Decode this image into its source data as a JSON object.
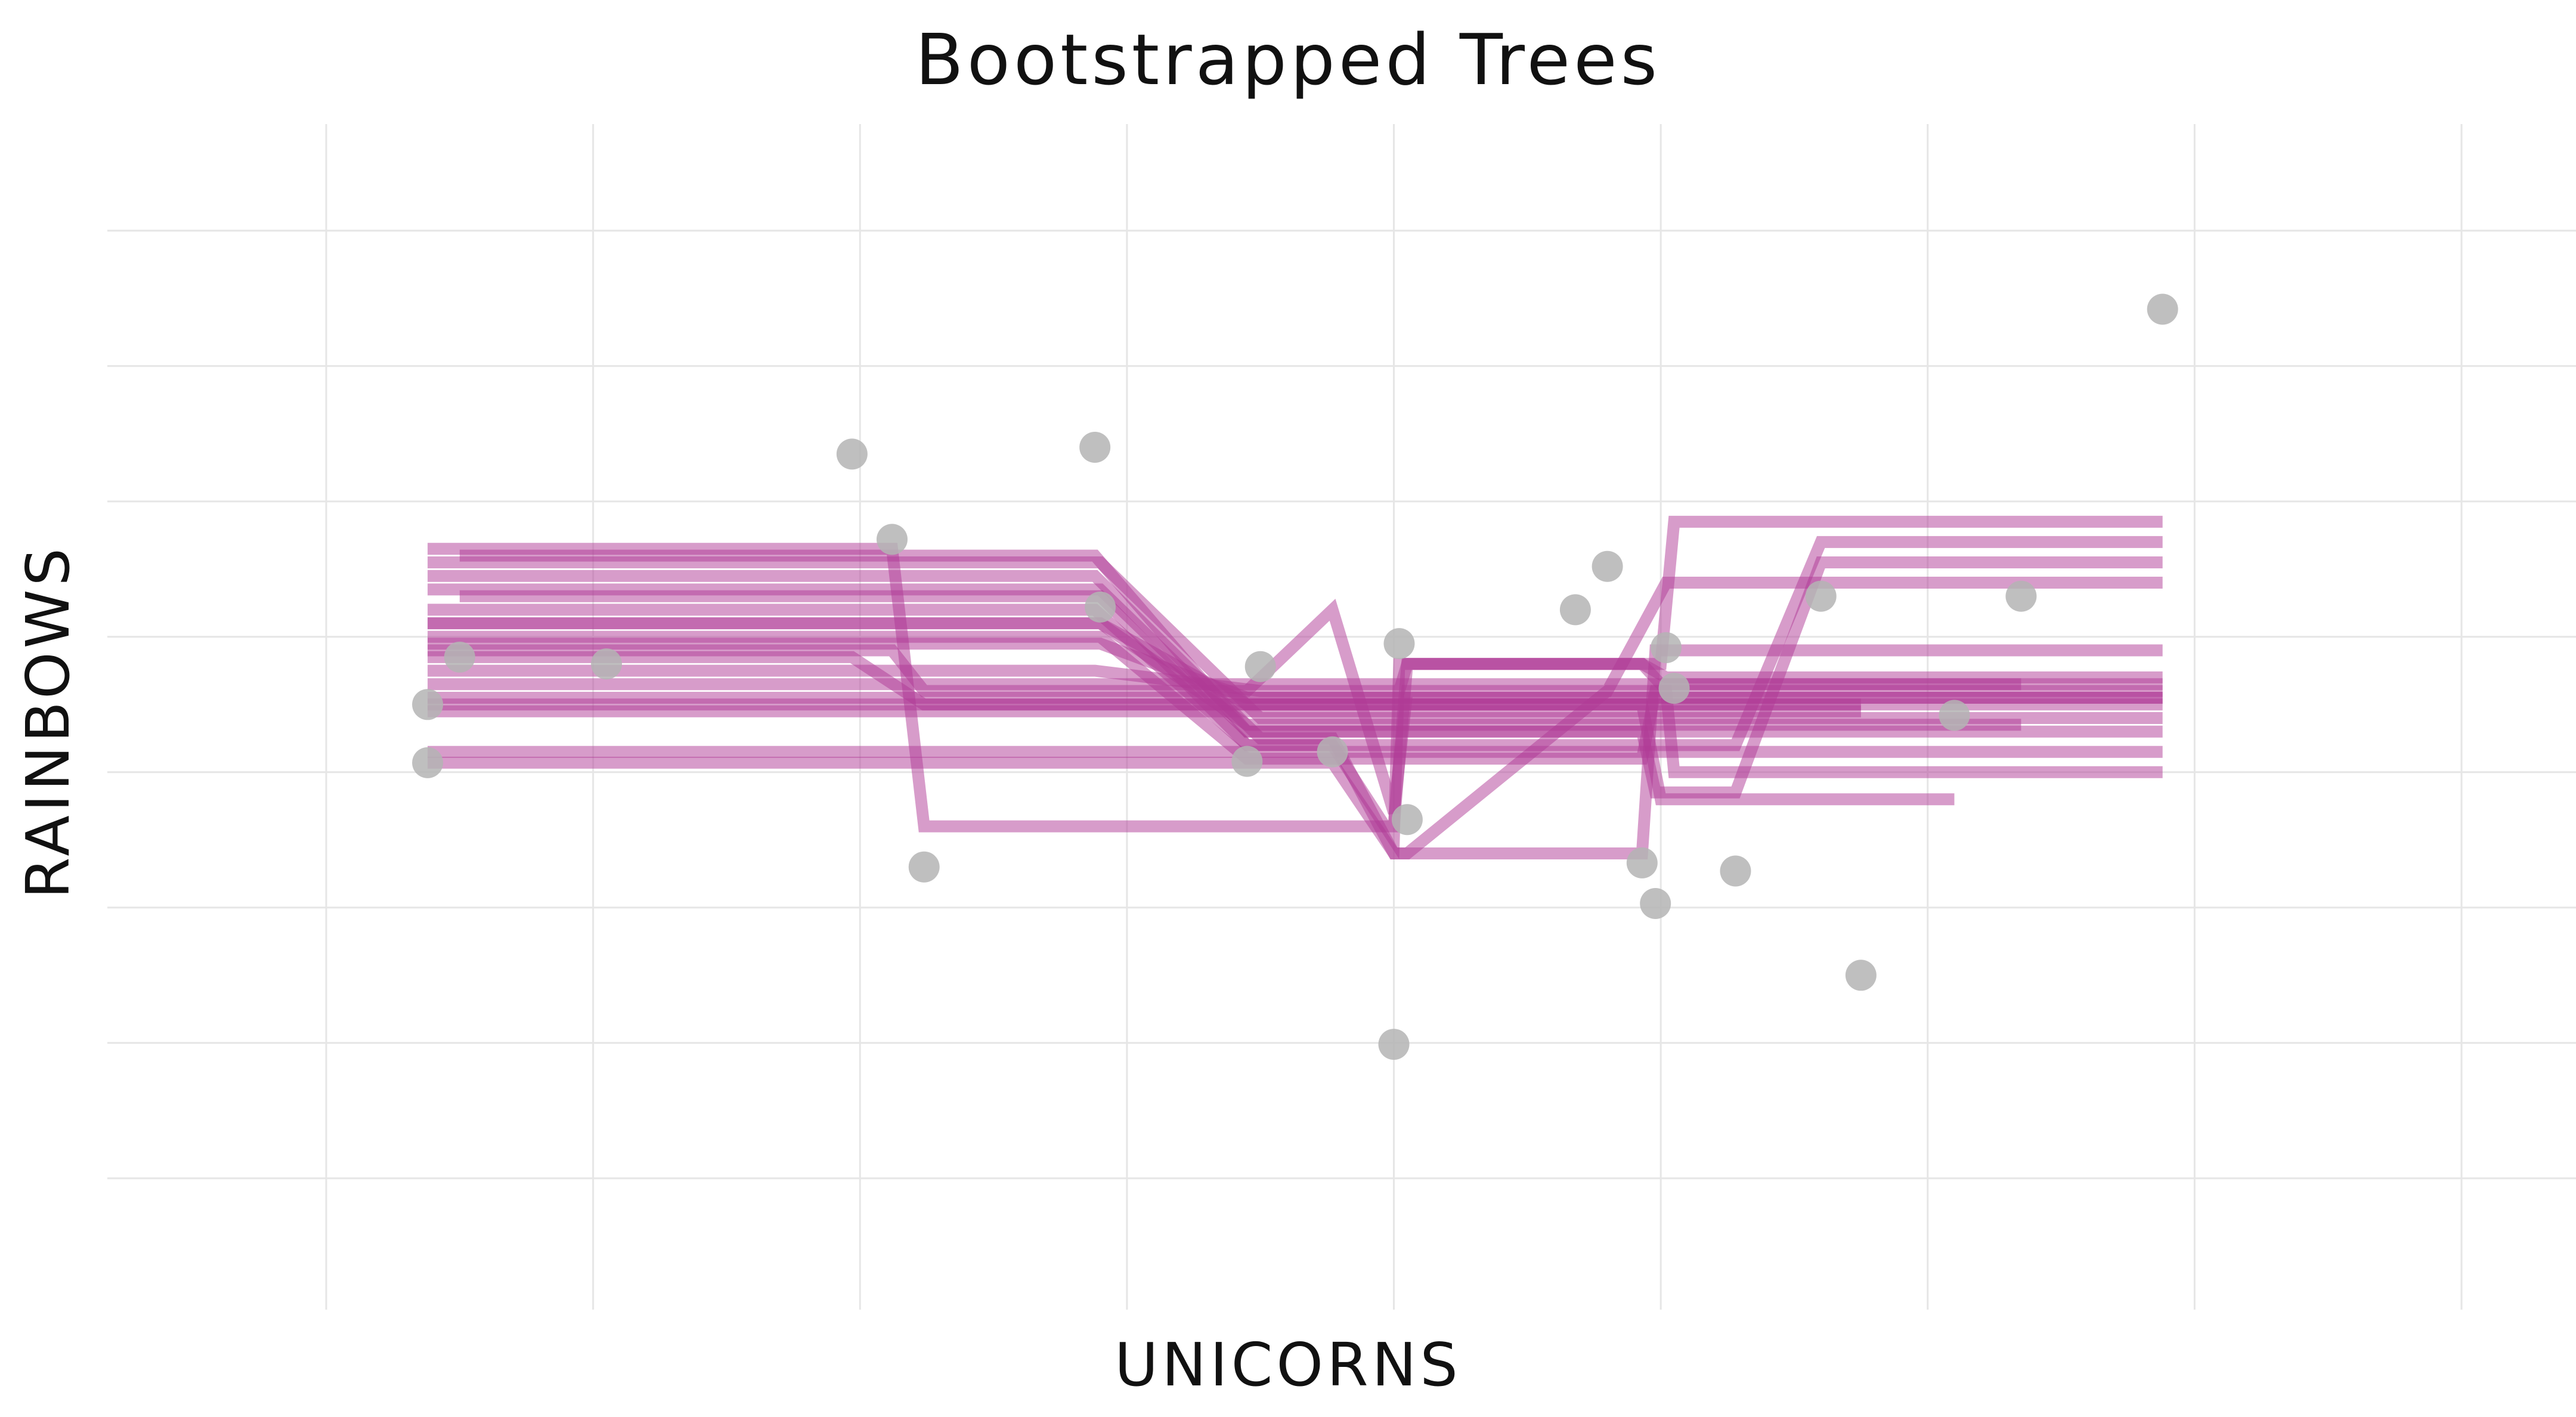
{
  "chart_data": {
    "type": "line",
    "title": "Bootstrapped Trees",
    "xlabel": "UNICORNS",
    "ylabel": "RAINBOWS",
    "grid": true,
    "tick_labels_shown": false,
    "xlim": [
      -0.4,
      8.0
    ],
    "ylim": [
      0.4,
      8.4
    ],
    "colors": {
      "line": "#b03a96",
      "point": "#b4b4b4",
      "grid": "#e6e6e6"
    },
    "points": [
      {
        "x": 0.38,
        "y": 4.5
      },
      {
        "x": 0.38,
        "y": 4.07
      },
      {
        "x": 0.5,
        "y": 4.85
      },
      {
        "x": 1.05,
        "y": 4.8
      },
      {
        "x": 1.97,
        "y": 6.35
      },
      {
        "x": 2.12,
        "y": 5.72
      },
      {
        "x": 2.24,
        "y": 3.3
      },
      {
        "x": 2.88,
        "y": 6.4
      },
      {
        "x": 2.9,
        "y": 5.22
      },
      {
        "x": 3.45,
        "y": 4.08
      },
      {
        "x": 3.5,
        "y": 4.78
      },
      {
        "x": 3.77,
        "y": 4.15
      },
      {
        "x": 4.0,
        "y": 1.99
      },
      {
        "x": 4.02,
        "y": 4.95
      },
      {
        "x": 4.05,
        "y": 3.65
      },
      {
        "x": 4.68,
        "y": 5.2
      },
      {
        "x": 4.8,
        "y": 5.52
      },
      {
        "x": 4.93,
        "y": 3.33
      },
      {
        "x": 4.98,
        "y": 3.03
      },
      {
        "x": 5.02,
        "y": 4.92
      },
      {
        "x": 5.05,
        "y": 4.62
      },
      {
        "x": 5.28,
        "y": 3.27
      },
      {
        "x": 5.6,
        "y": 5.3
      },
      {
        "x": 5.75,
        "y": 2.5
      },
      {
        "x": 6.1,
        "y": 4.42
      },
      {
        "x": 6.35,
        "y": 5.3
      },
      {
        "x": 6.88,
        "y": 7.42
      }
    ],
    "series": [
      {
        "values": [
          [
            0.38,
            5.65
          ],
          [
            2.12,
            5.65
          ],
          [
            2.24,
            3.6
          ],
          [
            4.0,
            3.6
          ],
          [
            4.05,
            4.8
          ],
          [
            5.0,
            4.8
          ],
          [
            5.05,
            5.85
          ],
          [
            6.88,
            5.85
          ]
        ]
      },
      {
        "values": [
          [
            0.38,
            5.55
          ],
          [
            2.9,
            5.55
          ],
          [
            3.5,
            4.4
          ],
          [
            6.88,
            4.4
          ]
        ]
      },
      {
        "values": [
          [
            0.38,
            5.35
          ],
          [
            2.9,
            5.35
          ],
          [
            3.45,
            4.3
          ],
          [
            6.88,
            4.3
          ]
        ]
      },
      {
        "values": [
          [
            0.38,
            5.2
          ],
          [
            2.88,
            5.2
          ],
          [
            3.45,
            4.2
          ],
          [
            5.28,
            4.2
          ],
          [
            5.6,
            5.7
          ],
          [
            6.88,
            5.7
          ]
        ]
      },
      {
        "values": [
          [
            0.38,
            5.1
          ],
          [
            2.9,
            5.1
          ],
          [
            3.45,
            4.5
          ],
          [
            4.93,
            4.5
          ],
          [
            5.0,
            3.8
          ],
          [
            6.1,
            3.8
          ]
        ]
      },
      {
        "values": [
          [
            0.38,
            4.95
          ],
          [
            2.9,
            4.95
          ],
          [
            3.45,
            4.55
          ],
          [
            6.88,
            4.55
          ]
        ]
      },
      {
        "values": [
          [
            0.38,
            4.85
          ],
          [
            1.97,
            4.85
          ],
          [
            2.24,
            4.5
          ],
          [
            5.75,
            4.5
          ]
        ]
      },
      {
        "values": [
          [
            0.38,
            4.75
          ],
          [
            2.88,
            4.75
          ],
          [
            3.5,
            4.6
          ],
          [
            4.02,
            4.6
          ],
          [
            4.05,
            4.8
          ],
          [
            4.93,
            4.8
          ],
          [
            5.0,
            4.65
          ],
          [
            6.88,
            4.65
          ]
        ]
      },
      {
        "values": [
          [
            0.38,
            4.65
          ],
          [
            6.35,
            4.65
          ]
        ]
      },
      {
        "values": [
          [
            0.38,
            4.55
          ],
          [
            6.88,
            4.55
          ]
        ]
      },
      {
        "values": [
          [
            0.38,
            4.07
          ],
          [
            3.77,
            4.07
          ],
          [
            4.0,
            3.4
          ],
          [
            4.05,
            3.4
          ],
          [
            4.8,
            4.6
          ],
          [
            5.02,
            4.6
          ],
          [
            5.05,
            4.0
          ],
          [
            6.88,
            4.0
          ]
        ]
      },
      {
        "values": [
          [
            0.5,
            5.6
          ],
          [
            2.88,
            5.6
          ],
          [
            3.45,
            4.3
          ],
          [
            4.93,
            4.3
          ],
          [
            4.98,
            3.85
          ],
          [
            5.28,
            3.85
          ],
          [
            5.6,
            5.55
          ],
          [
            6.88,
            5.55
          ]
        ]
      },
      {
        "values": [
          [
            0.5,
            5.3
          ],
          [
            2.9,
            5.3
          ],
          [
            3.45,
            4.2
          ],
          [
            3.77,
            4.2
          ],
          [
            4.0,
            3.5
          ],
          [
            4.02,
            4.8
          ],
          [
            4.93,
            4.8
          ],
          [
            5.02,
            4.7
          ],
          [
            6.88,
            4.7
          ]
        ]
      },
      {
        "values": [
          [
            0.38,
            5.45
          ],
          [
            2.88,
            5.45
          ],
          [
            3.5,
            4.25
          ],
          [
            3.77,
            4.25
          ],
          [
            4.0,
            3.4
          ],
          [
            4.93,
            3.4
          ],
          [
            4.98,
            4.9
          ],
          [
            6.88,
            4.9
          ]
        ]
      },
      {
        "values": [
          [
            0.38,
            4.5
          ],
          [
            6.88,
            4.5
          ]
        ]
      },
      {
        "values": [
          [
            0.38,
            4.45
          ],
          [
            5.75,
            4.45
          ]
        ]
      },
      {
        "values": [
          [
            0.38,
            4.9
          ],
          [
            2.12,
            4.9
          ],
          [
            2.24,
            4.6
          ],
          [
            3.45,
            4.6
          ],
          [
            3.77,
            5.2
          ],
          [
            4.0,
            3.7
          ],
          [
            4.05,
            4.6
          ],
          [
            4.8,
            4.6
          ],
          [
            5.02,
            5.4
          ],
          [
            6.88,
            5.4
          ]
        ]
      },
      {
        "values": [
          [
            0.38,
            5.1
          ],
          [
            2.9,
            5.1
          ],
          [
            3.45,
            4.35
          ],
          [
            6.35,
            4.35
          ]
        ]
      },
      {
        "values": [
          [
            0.38,
            4.15
          ],
          [
            6.88,
            4.15
          ]
        ]
      },
      {
        "values": [
          [
            0.38,
            5.0
          ],
          [
            2.9,
            5.0
          ],
          [
            3.45,
            4.1
          ],
          [
            4.93,
            4.1
          ],
          [
            4.98,
            4.6
          ],
          [
            6.88,
            4.6
          ]
        ]
      }
    ]
  }
}
